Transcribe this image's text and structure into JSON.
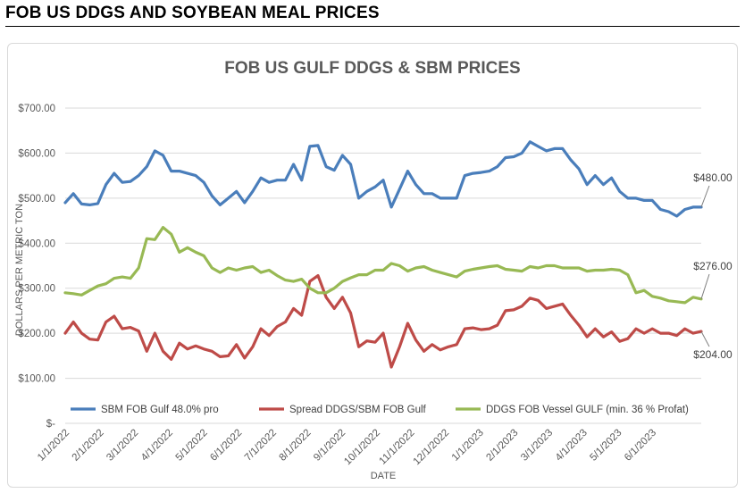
{
  "page": {
    "heading": "FOB US DDGS AND SOYBEAN MEAL PRICES"
  },
  "chart_data": {
    "type": "line",
    "title": "FOB US GULF DDGS & SBM PRICES",
    "xlabel": "DATE",
    "ylabel": "DOLLARS PER METRIC TON",
    "ylim": [
      0,
      700
    ],
    "y_ticks": [
      {
        "value": 0,
        "label": "$-"
      },
      {
        "value": 100,
        "label": "$100.00"
      },
      {
        "value": 200,
        "label": "$200.00"
      },
      {
        "value": 300,
        "label": "$300.00"
      },
      {
        "value": 400,
        "label": "$400.00"
      },
      {
        "value": 500,
        "label": "$500.00"
      },
      {
        "value": 600,
        "label": "$600.00"
      },
      {
        "value": 700,
        "label": "$700.00"
      }
    ],
    "x_tick_labels": [
      "1/1/2022",
      "2/1/2022",
      "3/1/2022",
      "4/1/2022",
      "5/1/2022",
      "6/1/2022",
      "7/1/2022",
      "8/1/2022",
      "9/1/2022",
      "10/1/2022",
      "11/1/2022",
      "12/1/2022",
      "1/1/2023",
      "2/1/2023",
      "3/1/2023",
      "4/1/2023",
      "5/1/2023",
      "6/1/2023"
    ],
    "grid": true,
    "legend_position": "bottom",
    "series": [
      {
        "name": "SBM FOB Gulf 48.0% pro",
        "color": "#4a7ebb",
        "values": [
          490,
          510,
          487,
          485,
          488,
          530,
          555,
          535,
          537,
          550,
          570,
          605,
          595,
          560,
          560,
          555,
          550,
          535,
          505,
          485,
          500,
          515,
          490,
          515,
          545,
          535,
          540,
          540,
          575,
          540,
          615,
          617,
          570,
          562,
          595,
          575,
          500,
          515,
          525,
          540,
          480,
          520,
          560,
          530,
          510,
          510,
          500,
          500,
          500,
          550,
          555,
          557,
          560,
          570,
          590,
          592,
          600,
          625,
          615,
          605,
          610,
          610,
          585,
          565,
          530,
          550,
          530,
          545,
          515,
          500,
          500,
          495,
          495,
          475,
          470,
          460,
          475,
          480,
          480
        ]
      },
      {
        "name": "Spread DDGS/SBM FOB Gulf",
        "color": "#be4b48",
        "values": [
          200,
          225,
          200,
          187,
          185,
          225,
          238,
          210,
          213,
          205,
          160,
          200,
          160,
          142,
          178,
          165,
          172,
          165,
          160,
          148,
          150,
          175,
          145,
          170,
          210,
          195,
          215,
          225,
          255,
          240,
          315,
          328,
          280,
          255,
          280,
          245,
          170,
          183,
          180,
          200,
          125,
          170,
          222,
          185,
          160,
          175,
          163,
          170,
          175,
          210,
          212,
          208,
          210,
          218,
          250,
          252,
          260,
          278,
          273,
          255,
          260,
          265,
          240,
          218,
          192,
          210,
          192,
          203,
          182,
          188,
          210,
          200,
          210,
          200,
          200,
          195,
          210,
          200,
          204
        ]
      },
      {
        "name": "DDGS FOB Vessel GULF  (min. 36 % Profat)",
        "color": "#98b954",
        "values": [
          290,
          288,
          285,
          295,
          305,
          310,
          322,
          325,
          322,
          345,
          410,
          408,
          435,
          420,
          380,
          390,
          380,
          372,
          345,
          335,
          345,
          340,
          345,
          348,
          335,
          340,
          328,
          318,
          315,
          320,
          300,
          290,
          290,
          300,
          315,
          323,
          330,
          330,
          340,
          340,
          355,
          350,
          338,
          345,
          348,
          340,
          335,
          330,
          325,
          338,
          342,
          345,
          348,
          350,
          342,
          340,
          338,
          348,
          345,
          350,
          350,
          345,
          345,
          345,
          338,
          340,
          340,
          342,
          340,
          330,
          290,
          295,
          282,
          278,
          272,
          270,
          268,
          280,
          276
        ]
      }
    ],
    "callouts": [
      {
        "series": 0,
        "label": "$480.00"
      },
      {
        "series": 2,
        "label": "$276.00"
      },
      {
        "series": 1,
        "label": "$204.00"
      }
    ]
  }
}
